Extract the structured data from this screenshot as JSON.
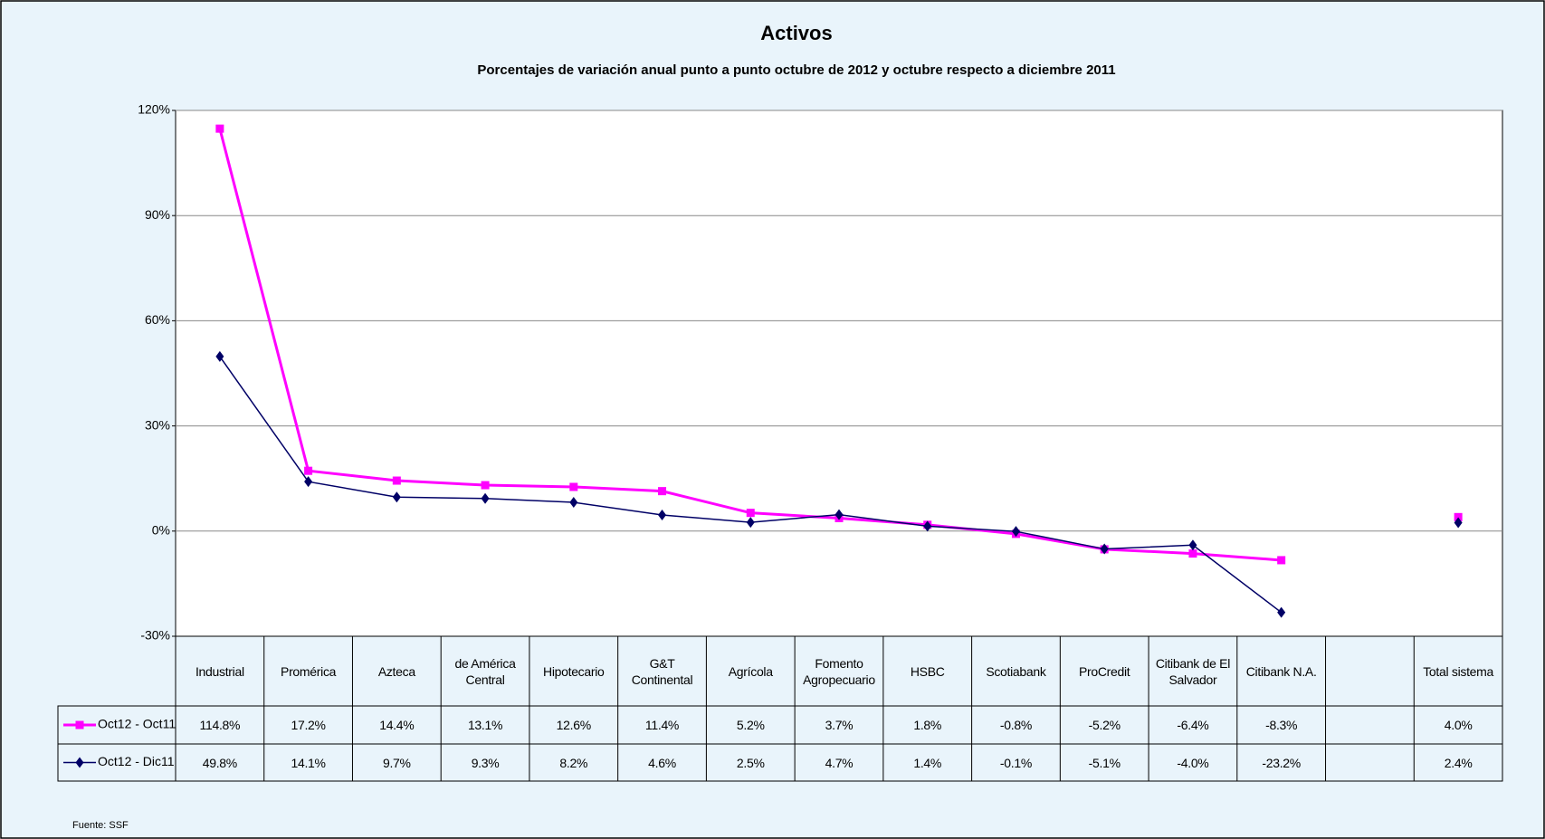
{
  "chart_data": {
    "type": "line",
    "title": "Activos",
    "subtitle": "Porcentajes de variación anual punto a punto octubre de 2012 y octubre respecto a diciembre 2011",
    "categories": [
      "Industrial",
      "Promérica",
      "Azteca",
      "de América Central",
      "Hipotecario",
      "G&T Continental",
      "Agrícola",
      "Fomento Agropecuario",
      "HSBC",
      "Scotiabank",
      "ProCredit",
      "Citibank de El Salvador",
      "Citibank N.A.",
      null,
      "Total sistema"
    ],
    "series": [
      {
        "name": "Oct12 - Oct11",
        "color": "#ff00ff",
        "marker": "square",
        "values": [
          114.8,
          17.2,
          14.4,
          13.1,
          12.6,
          11.4,
          5.2,
          3.7,
          1.8,
          -0.8,
          -5.2,
          -6.4,
          -8.3,
          null,
          4.0
        ],
        "value_labels": [
          "114.8%",
          "17.2%",
          "14.4%",
          "13.1%",
          "12.6%",
          "11.4%",
          "5.2%",
          "3.7%",
          "1.8%",
          "-0.8%",
          "-5.2%",
          "-6.4%",
          "-8.3%",
          null,
          "4.0%"
        ]
      },
      {
        "name": "Oct12 - Dic11",
        "color": "#000066",
        "marker": "diamond",
        "values": [
          49.8,
          14.1,
          9.7,
          9.3,
          8.2,
          4.6,
          2.5,
          4.7,
          1.4,
          -0.1,
          -5.1,
          -4.0,
          -23.2,
          null,
          2.4
        ],
        "value_labels": [
          "49.8%",
          "14.1%",
          "9.7%",
          "9.3%",
          "8.2%",
          "4.6%",
          "2.5%",
          "4.7%",
          "1.4%",
          "-0.1%",
          "-5.1%",
          "-4.0%",
          "-23.2%",
          null,
          "2.4%"
        ]
      }
    ],
    "ylim": [
      -30,
      120
    ],
    "yticks": [
      {
        "value": -30,
        "label": "-30%"
      },
      {
        "value": 0,
        "label": "0%"
      },
      {
        "value": 30,
        "label": "30%"
      },
      {
        "value": 60,
        "label": "60%"
      },
      {
        "value": 90,
        "label": "90%"
      },
      {
        "value": 120,
        "label": "120%"
      }
    ],
    "grid": true,
    "source": "Fuente: SSF"
  }
}
